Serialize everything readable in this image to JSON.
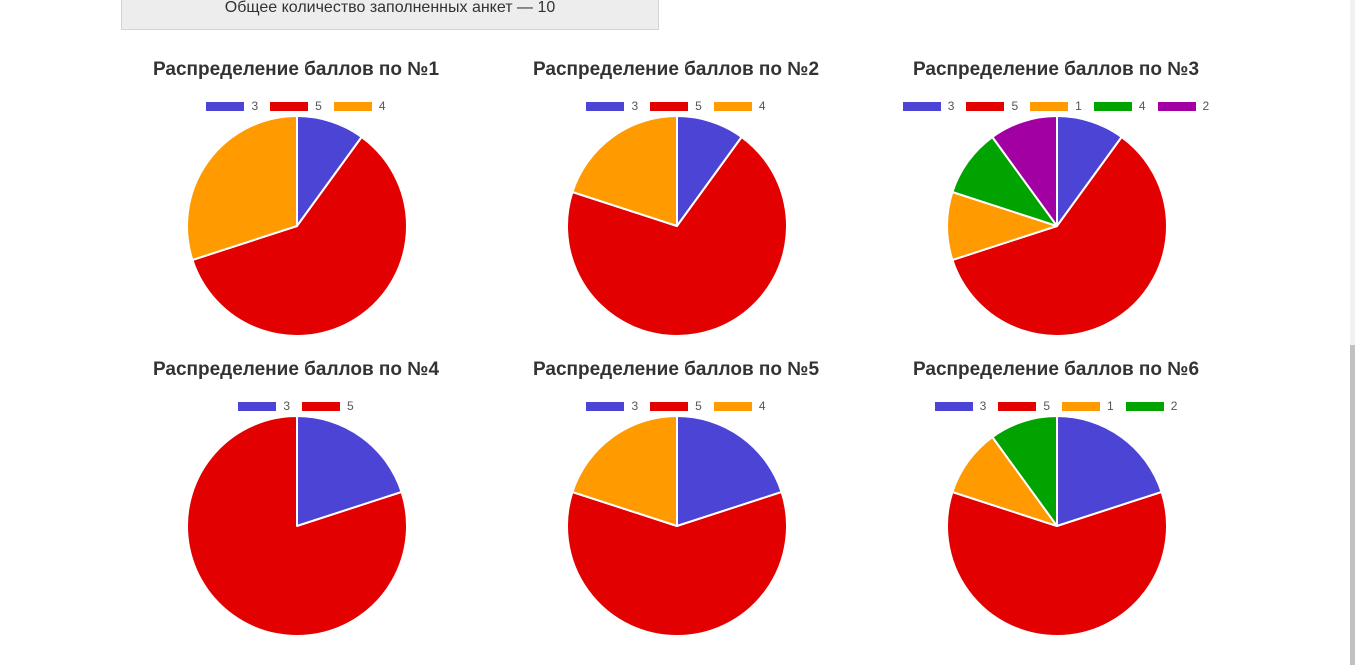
{
  "summary": {
    "text": "Общее количество заполненных анкет — 10"
  },
  "colors": {
    "3": "#4c44d4",
    "5": "#e30000",
    "4": "#ff9a00",
    "1": "#ff9a00",
    "2": "#9c009c",
    "green": "#00a300"
  },
  "chart_data": [
    {
      "type": "pie",
      "title": "Распределение баллов по №1",
      "series": [
        {
          "name": "3",
          "value": 1,
          "color": "#4c44d4"
        },
        {
          "name": "5",
          "value": 6,
          "color": "#e30000"
        },
        {
          "name": "4",
          "value": 3,
          "color": "#ff9a00"
        }
      ]
    },
    {
      "type": "pie",
      "title": "Распределение баллов по №2",
      "series": [
        {
          "name": "3",
          "value": 1,
          "color": "#4c44d4"
        },
        {
          "name": "5",
          "value": 7,
          "color": "#e30000"
        },
        {
          "name": "4",
          "value": 2,
          "color": "#ff9a00"
        }
      ]
    },
    {
      "type": "pie",
      "title": "Распределение баллов по №3",
      "series": [
        {
          "name": "3",
          "value": 1,
          "color": "#4c44d4"
        },
        {
          "name": "5",
          "value": 6,
          "color": "#e30000"
        },
        {
          "name": "1",
          "value": 1,
          "color": "#ff9a00"
        },
        {
          "name": "4",
          "value": 1,
          "color": "#00a300"
        },
        {
          "name": "2",
          "value": 1,
          "color": "#a300a3"
        }
      ]
    },
    {
      "type": "pie",
      "title": "Распределение баллов по №4",
      "series": [
        {
          "name": "3",
          "value": 2,
          "color": "#4c44d4"
        },
        {
          "name": "5",
          "value": 8,
          "color": "#e30000"
        }
      ]
    },
    {
      "type": "pie",
      "title": "Распределение баллов по №5",
      "series": [
        {
          "name": "3",
          "value": 2,
          "color": "#4c44d4"
        },
        {
          "name": "5",
          "value": 6,
          "color": "#e30000"
        },
        {
          "name": "4",
          "value": 2,
          "color": "#ff9a00"
        }
      ]
    },
    {
      "type": "pie",
      "title": "Распределение баллов по №6",
      "series": [
        {
          "name": "3",
          "value": 2,
          "color": "#4c44d4"
        },
        {
          "name": "5",
          "value": 6,
          "color": "#e30000"
        },
        {
          "name": "1",
          "value": 1,
          "color": "#ff9a00"
        },
        {
          "name": "2",
          "value": 1,
          "color": "#00a300"
        }
      ]
    }
  ]
}
